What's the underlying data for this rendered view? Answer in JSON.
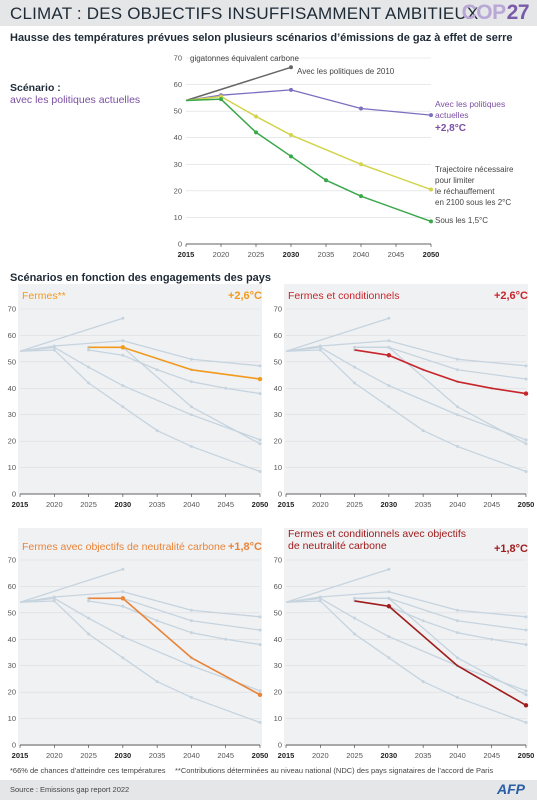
{
  "header": {
    "title": "CLIMAT : DES OBJECTIFS INSUFFISAMMENT AMBITIEUX",
    "logo_text": "COP",
    "logo_number": "27"
  },
  "subtitle": "Hausse des températures prévues selon plusieurs scénarios d’émissions de gaz à effet de serre",
  "scenario": {
    "label": "Scénario :",
    "value": "avec les politiques actuelles"
  },
  "section2_title": "Scénarios en fonction des engagements des pays",
  "colors": {
    "grey_line": "#666666",
    "purple": "#7b6fc0",
    "yellow": "#d2d44c",
    "green": "#3aa84a",
    "orange": "#f29a1c",
    "red": "#c8252a",
    "orange_dark": "#e98438",
    "dark_red": "#a01c1c",
    "bg_line": "#c6d4df",
    "purple_text": "#7a4fa3"
  },
  "chart_data": [
    {
      "type": "line",
      "ylabel": "gigatonnes équivalent carbone",
      "ylim": [
        0,
        70
      ],
      "yticks": [
        0,
        10,
        20,
        30,
        40,
        50,
        60,
        70
      ],
      "xlim": [
        2015,
        2050
      ],
      "xticks": [
        2015,
        2020,
        2025,
        2030,
        2035,
        2040,
        2045,
        2050
      ],
      "series": [
        {
          "name": "Avec les politiques de 2010",
          "color": "#666666",
          "x": [
            2015,
            2030
          ],
          "y": [
            54,
            66.5
          ]
        },
        {
          "name": "Avec les politiques actuelles",
          "highlight": "+2,8°C",
          "color": "#7b6fc0",
          "x": [
            2015,
            2020,
            2030,
            2040,
            2050
          ],
          "y": [
            54,
            56,
            58,
            51,
            48.5
          ]
        },
        {
          "name": "Trajectoire nécessaire pour limiter le réchauffement en 2100 sous les 2°C",
          "color": "#d2d44c",
          "x": [
            2015,
            2020,
            2025,
            2030,
            2040,
            2050
          ],
          "y": [
            54,
            55.5,
            48,
            41,
            30,
            20.5
          ]
        },
        {
          "name": "Sous les 1,5°C",
          "color": "#3aa84a",
          "x": [
            2015,
            2020,
            2025,
            2030,
            2035,
            2040,
            2050
          ],
          "y": [
            54,
            54.5,
            42,
            33,
            24,
            18,
            8.5
          ]
        }
      ]
    },
    {
      "type": "line",
      "title": "Fermes**",
      "temp": "+2,6°C",
      "ylim": [
        0,
        70
      ],
      "yticks": [
        0,
        10,
        20,
        30,
        40,
        50,
        60,
        70
      ],
      "xlim": [
        2015,
        2050
      ],
      "xticks": [
        2015,
        2020,
        2025,
        2030,
        2035,
        2040,
        2045,
        2050
      ],
      "series": [
        {
          "color": "#f29a1c",
          "x": [
            2025,
            2030,
            2040,
            2050
          ],
          "y": [
            55.5,
            55.5,
            47,
            43.5
          ]
        }
      ]
    },
    {
      "type": "line",
      "title": "Fermes et conditionnels",
      "temp": "+2,6°C",
      "ylim": [
        0,
        70
      ],
      "yticks": [
        0,
        10,
        20,
        30,
        40,
        50,
        60,
        70
      ],
      "xlim": [
        2015,
        2050
      ],
      "xticks": [
        2015,
        2020,
        2025,
        2030,
        2035,
        2040,
        2045,
        2050
      ],
      "series": [
        {
          "color": "#c8252a",
          "x": [
            2025,
            2030,
            2035,
            2040,
            2045,
            2050
          ],
          "y": [
            54.5,
            52.5,
            47,
            42.5,
            40,
            38
          ]
        }
      ]
    },
    {
      "type": "line",
      "title": "Fermes avec objectifs de neutralité carbone",
      "temp": "+1,8°C",
      "ylim": [
        0,
        70
      ],
      "yticks": [
        0,
        10,
        20,
        30,
        40,
        50,
        60,
        70
      ],
      "xlim": [
        2015,
        2050
      ],
      "xticks": [
        2015,
        2020,
        2025,
        2030,
        2035,
        2040,
        2045,
        2050
      ],
      "series": [
        {
          "color": "#e98438",
          "x": [
            2025,
            2030,
            2040,
            2050
          ],
          "y": [
            55.5,
            55.5,
            33,
            19
          ]
        }
      ]
    },
    {
      "type": "line",
      "title_lines": [
        "Fermes et conditionnels avec objectifs",
        "de neutralité carbone"
      ],
      "temp": "+1,8°C",
      "ylim": [
        0,
        70
      ],
      "yticks": [
        0,
        10,
        20,
        30,
        40,
        50,
        60,
        70
      ],
      "xlim": [
        2015,
        2050
      ],
      "xticks": [
        2015,
        2020,
        2025,
        2030,
        2035,
        2040,
        2045,
        2050
      ],
      "series": [
        {
          "color": "#a01c1c",
          "x": [
            2025,
            2030,
            2040,
            2050
          ],
          "y": [
            54.5,
            52.5,
            30,
            15
          ]
        }
      ]
    }
  ],
  "footnotes": {
    "note1": "*66% de chances d’atteindre ces températures",
    "note2": "**Contributions déterminées au niveau national (NDC) des pays signataires de l’accord de Paris",
    "source": "Source : Emissions gap report 2022",
    "credit": "AFP"
  }
}
